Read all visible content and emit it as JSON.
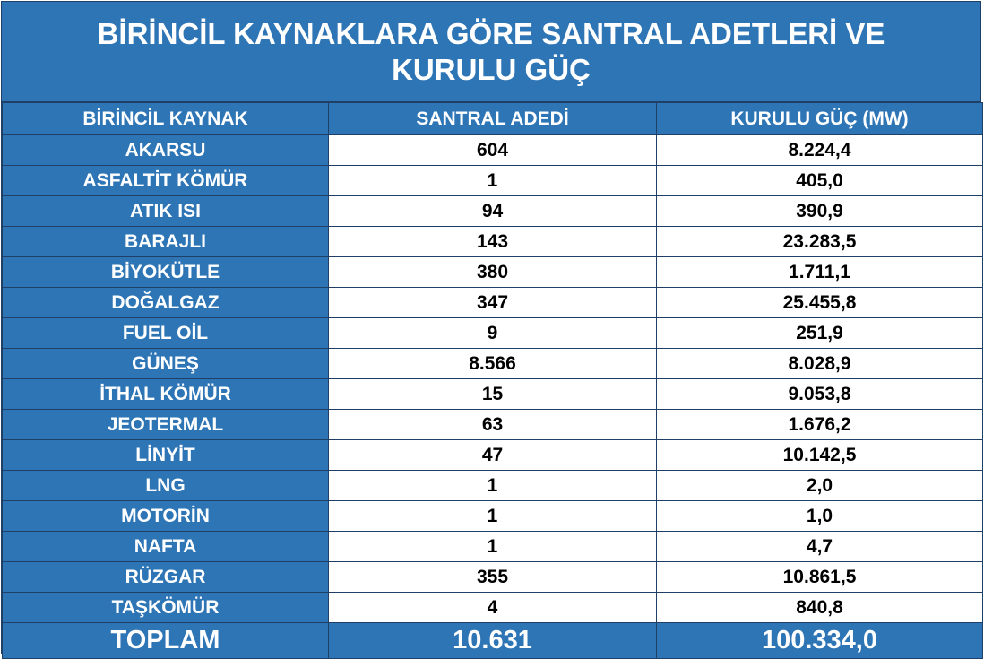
{
  "chart_data": {
    "type": "table",
    "title": "BİRİNCİL KAYNAKLARA GÖRE SANTRAL ADETLERİ VE KURULU GÜÇ",
    "columns": [
      "BİRİNCİL KAYNAK",
      "SANTRAL ADEDİ",
      "KURULU GÜÇ (MW)"
    ],
    "rows": [
      {
        "source": "AKARSU",
        "count": "604",
        "power": "8.224,4"
      },
      {
        "source": "ASFALTİT KÖMÜR",
        "count": "1",
        "power": "405,0"
      },
      {
        "source": "ATIK ISI",
        "count": "94",
        "power": "390,9"
      },
      {
        "source": "BARAJLI",
        "count": "143",
        "power": "23.283,5"
      },
      {
        "source": "BİYOKÜTLE",
        "count": "380",
        "power": "1.711,1"
      },
      {
        "source": "DOĞALGAZ",
        "count": "347",
        "power": "25.455,8"
      },
      {
        "source": "FUEL OİL",
        "count": "9",
        "power": "251,9"
      },
      {
        "source": "GÜNEŞ",
        "count": "8.566",
        "power": "8.028,9"
      },
      {
        "source": "İTHAL KÖMÜR",
        "count": "15",
        "power": "9.053,8"
      },
      {
        "source": "JEOTERMAL",
        "count": "63",
        "power": "1.676,2"
      },
      {
        "source": "LİNYİT",
        "count": "47",
        "power": "10.142,5"
      },
      {
        "source": "LNG",
        "count": "1",
        "power": "2,0"
      },
      {
        "source": "MOTORİN",
        "count": "1",
        "power": "1,0"
      },
      {
        "source": "NAFTA",
        "count": "1",
        "power": "4,7"
      },
      {
        "source": "RÜZGAR",
        "count": "355",
        "power": "10.861,5"
      },
      {
        "source": "TAŞKÖMÜR",
        "count": "4",
        "power": "840,8"
      }
    ],
    "total": {
      "label": "TOPLAM",
      "count": "10.631",
      "power": "100.334,0"
    },
    "colors": {
      "header_bg": "#2e75b6",
      "cell_bg": "#ffffff",
      "border": "#1f3f66"
    }
  }
}
